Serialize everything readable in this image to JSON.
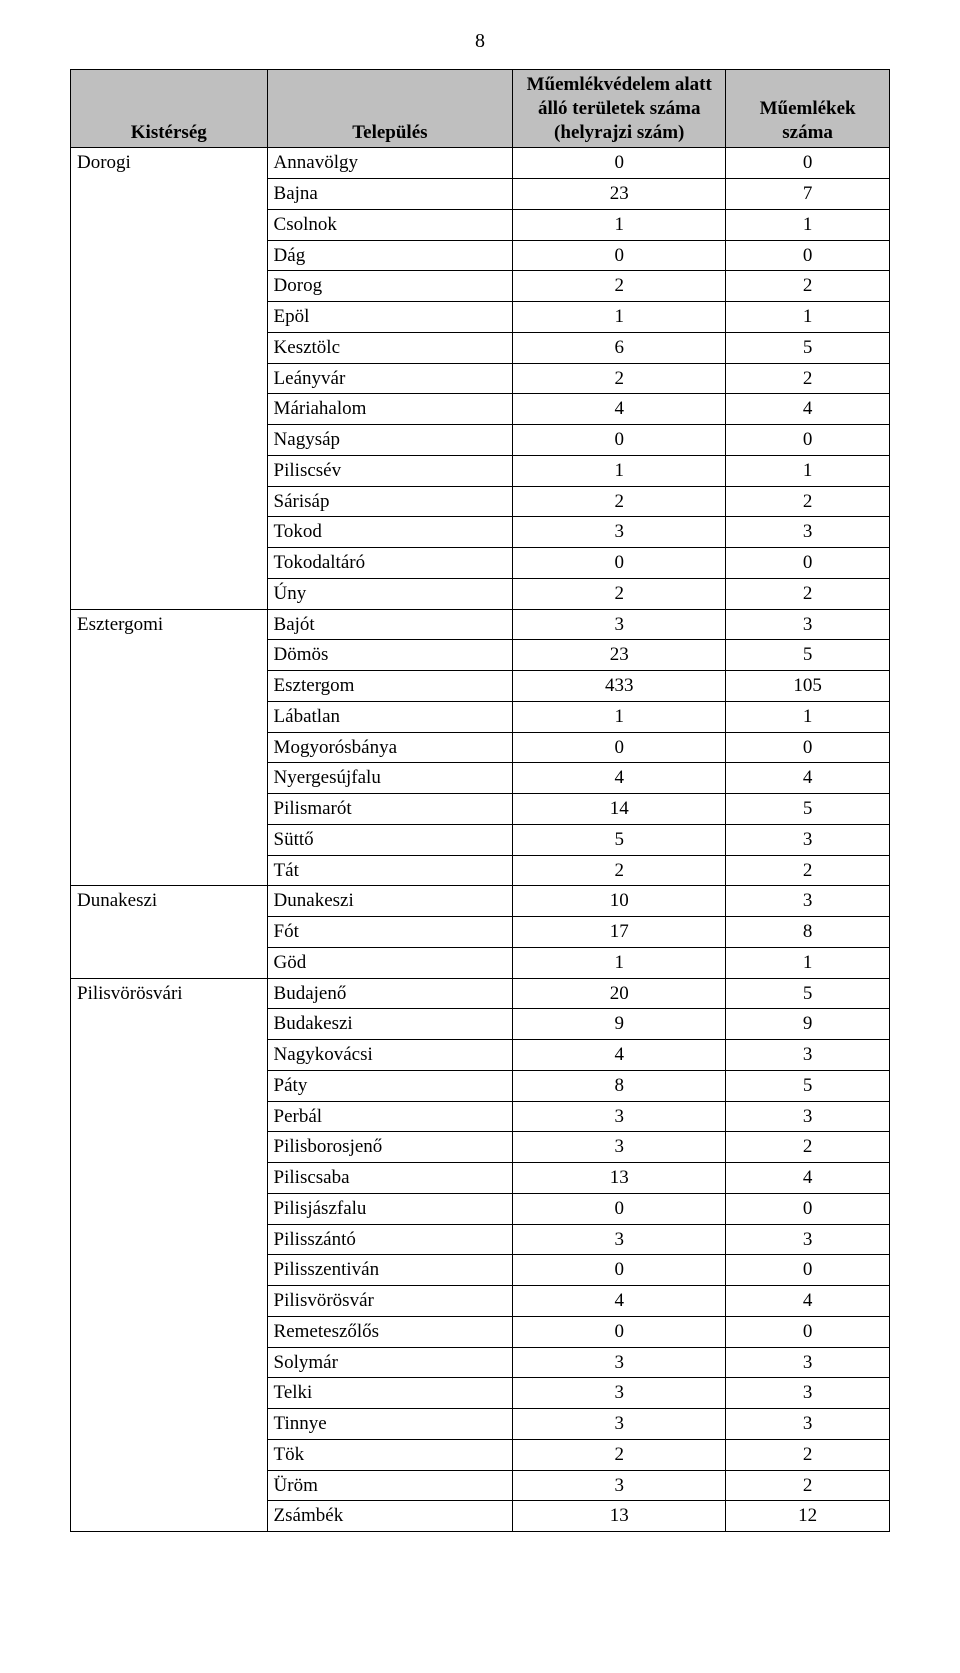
{
  "pageNumber": "8",
  "headers": {
    "col1": "Kistérség",
    "col2": "Település",
    "col3": "Műemlékvédelem alatt álló területek száma (helyrajzi szám)",
    "col4": "Műemlékek száma"
  },
  "style": {
    "header_bg": "#bfbfbf",
    "border_color": "#000000",
    "font_family": "Times New Roman",
    "base_fontsize_pt": 14,
    "pagenum_fontsize_pt": 15,
    "text_color": "#000000",
    "background_color": "#ffffff"
  },
  "regions": [
    {
      "name": "Dorogi",
      "rows": [
        {
          "settlement": "Annavölgy",
          "a": "0",
          "b": "0"
        },
        {
          "settlement": "Bajna",
          "a": "23",
          "b": "7"
        },
        {
          "settlement": "Csolnok",
          "a": "1",
          "b": "1"
        },
        {
          "settlement": "Dág",
          "a": "0",
          "b": "0"
        },
        {
          "settlement": "Dorog",
          "a": "2",
          "b": "2"
        },
        {
          "settlement": "Epöl",
          "a": "1",
          "b": "1"
        },
        {
          "settlement": "Kesztölc",
          "a": "6",
          "b": "5"
        },
        {
          "settlement": "Leányvár",
          "a": "2",
          "b": "2"
        },
        {
          "settlement": "Máriahalom",
          "a": "4",
          "b": "4"
        },
        {
          "settlement": "Nagysáp",
          "a": "0",
          "b": "0"
        },
        {
          "settlement": "Piliscsév",
          "a": "1",
          "b": "1"
        },
        {
          "settlement": "Sárisáp",
          "a": "2",
          "b": "2"
        },
        {
          "settlement": "Tokod",
          "a": "3",
          "b": "3"
        },
        {
          "settlement": "Tokodaltáró",
          "a": "0",
          "b": "0"
        },
        {
          "settlement": "Úny",
          "a": "2",
          "b": "2"
        }
      ]
    },
    {
      "name": "Esztergomi",
      "rows": [
        {
          "settlement": "Bajót",
          "a": "3",
          "b": "3"
        },
        {
          "settlement": "Dömös",
          "a": "23",
          "b": "5"
        },
        {
          "settlement": "Esztergom",
          "a": "433",
          "b": "105"
        },
        {
          "settlement": "Lábatlan",
          "a": "1",
          "b": "1"
        },
        {
          "settlement": "Mogyorósbánya",
          "a": "0",
          "b": "0"
        },
        {
          "settlement": "Nyergesújfalu",
          "a": "4",
          "b": "4"
        },
        {
          "settlement": "Pilismarót",
          "a": "14",
          "b": "5"
        },
        {
          "settlement": "Süttő",
          "a": "5",
          "b": "3"
        },
        {
          "settlement": "Tát",
          "a": "2",
          "b": "2"
        }
      ]
    },
    {
      "name": "Dunakeszi",
      "rows": [
        {
          "settlement": "Dunakeszi",
          "a": "10",
          "b": "3"
        },
        {
          "settlement": "Fót",
          "a": "17",
          "b": "8"
        },
        {
          "settlement": "Göd",
          "a": "1",
          "b": "1"
        }
      ]
    },
    {
      "name": "Pilisvörösvári",
      "rows": [
        {
          "settlement": "Budajenő",
          "a": "20",
          "b": "5"
        },
        {
          "settlement": "Budakeszi",
          "a": "9",
          "b": "9"
        },
        {
          "settlement": "Nagykovácsi",
          "a": "4",
          "b": "3"
        },
        {
          "settlement": "Páty",
          "a": "8",
          "b": "5"
        },
        {
          "settlement": "Perbál",
          "a": "3",
          "b": "3"
        },
        {
          "settlement": "Pilisborosjenő",
          "a": "3",
          "b": "2"
        },
        {
          "settlement": "Piliscsaba",
          "a": "13",
          "b": "4"
        },
        {
          "settlement": "Pilisjászfalu",
          "a": "0",
          "b": "0"
        },
        {
          "settlement": "Pilisszántó",
          "a": "3",
          "b": "3"
        },
        {
          "settlement": "Pilisszentiván",
          "a": "0",
          "b": "0"
        },
        {
          "settlement": "Pilisvörösvár",
          "a": "4",
          "b": "4"
        },
        {
          "settlement": "Remeteszőlős",
          "a": "0",
          "b": "0"
        },
        {
          "settlement": "Solymár",
          "a": "3",
          "b": "3"
        },
        {
          "settlement": "Telki",
          "a": "3",
          "b": "3"
        },
        {
          "settlement": "Tinnye",
          "a": "3",
          "b": "3"
        },
        {
          "settlement": "Tök",
          "a": "2",
          "b": "2"
        },
        {
          "settlement": "Üröm",
          "a": "3",
          "b": "2"
        },
        {
          "settlement": "Zsámbék",
          "a": "13",
          "b": "12"
        }
      ]
    }
  ]
}
